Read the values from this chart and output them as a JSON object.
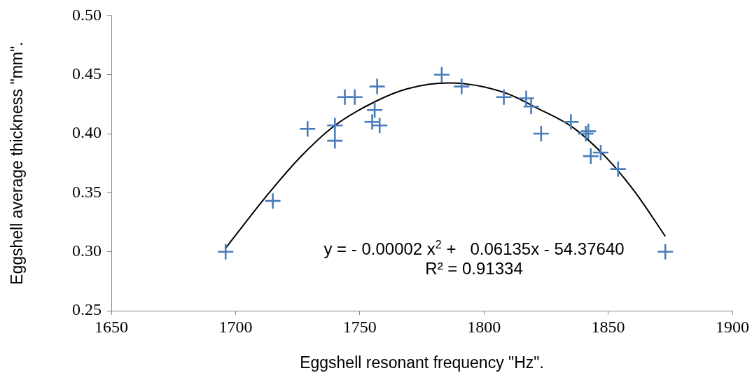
{
  "chart_data": {
    "type": "scatter",
    "xlabel": "Eggshell resonant frequency \"Hz\".",
    "ylabel": "Eggshell average thickness \"mm\".",
    "xlim": [
      1650,
      1900
    ],
    "xticks": [
      1650,
      1700,
      1750,
      1800,
      1850,
      1900
    ],
    "ylim": [
      0.25,
      0.5
    ],
    "yticks": [
      {
        "value": 0.25,
        "label": "0.25"
      },
      {
        "value": 0.3,
        "label": "0.30"
      },
      {
        "value": 0.35,
        "label": "0.35"
      },
      {
        "value": 0.4,
        "label": "0.40"
      },
      {
        "value": 0.45,
        "label": "0.45"
      },
      {
        "value": 0.5,
        "label": "0.50"
      }
    ],
    "grid": false,
    "legend": false,
    "marker": "cross",
    "series": [
      {
        "color": "#4a7ebb",
        "x": [
          1696,
          1715,
          1729,
          1740,
          1740,
          1744,
          1748,
          1757,
          1756,
          1755,
          1758,
          1783,
          1791,
          1808,
          1817,
          1819,
          1823,
          1835,
          1841,
          1842,
          1843,
          1847,
          1854,
          1873
        ],
        "values": [
          0.3,
          0.343,
          0.404,
          0.407,
          0.394,
          0.431,
          0.431,
          0.44,
          0.42,
          0.41,
          0.407,
          0.45,
          0.44,
          0.431,
          0.43,
          0.423,
          0.4,
          0.41,
          0.4,
          0.402,
          0.381,
          0.384,
          0.37,
          0.3
        ]
      },
      {
        "type": "line",
        "color": "#000000",
        "marker": "none",
        "x": [
          1696,
          1712,
          1726,
          1740,
          1756,
          1769,
          1786,
          1808,
          1822,
          1836,
          1850,
          1861,
          1873
        ],
        "values": [
          0.303,
          0.346,
          0.38,
          0.407,
          0.427,
          0.438,
          0.443,
          0.435,
          0.421,
          0.405,
          0.378,
          0.35,
          0.313
        ]
      }
    ],
    "annotations": [
      "y = - 0.00002 x$^{2}$ +   0.06135x - 54.37640",
      "R² = 0.91334"
    ]
  }
}
